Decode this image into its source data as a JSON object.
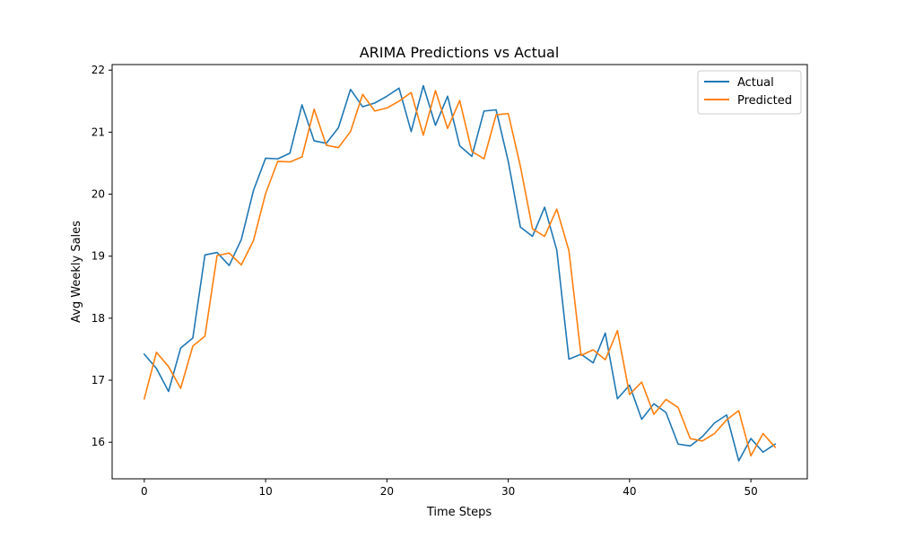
{
  "chart_data": {
    "type": "line",
    "title": "ARIMA Predictions vs Actual",
    "xlabel": "Time Steps",
    "ylabel": "Avg Weekly Sales",
    "xlim": [
      -2.65,
      54.65
    ],
    "ylim": [
      15.41,
      22.09
    ],
    "xticks": [
      0,
      10,
      20,
      30,
      40,
      50
    ],
    "yticks": [
      16,
      17,
      18,
      19,
      20,
      21,
      22
    ],
    "grid": false,
    "legend_position": "top-right",
    "x": [
      0,
      1,
      2,
      3,
      4,
      5,
      6,
      7,
      8,
      9,
      10,
      11,
      12,
      13,
      14,
      15,
      16,
      17,
      18,
      19,
      20,
      21,
      22,
      23,
      24,
      25,
      26,
      27,
      28,
      29,
      30,
      31,
      32,
      33,
      34,
      35,
      36,
      37,
      38,
      39,
      40,
      41,
      42,
      43,
      44,
      45,
      46,
      47,
      48,
      49,
      50,
      51,
      52
    ],
    "series": [
      {
        "name": "Actual",
        "color": "#1f77b4",
        "values": [
          17.42,
          17.19,
          16.82,
          17.52,
          17.68,
          19.02,
          19.06,
          18.85,
          19.27,
          20.06,
          20.58,
          20.57,
          20.66,
          21.44,
          20.86,
          20.82,
          21.07,
          21.69,
          21.41,
          21.47,
          21.58,
          21.71,
          21.01,
          21.75,
          21.11,
          21.58,
          20.78,
          20.61,
          21.34,
          21.36,
          20.53,
          19.47,
          19.32,
          19.79,
          19.1,
          17.34,
          17.42,
          17.28,
          17.76,
          16.7,
          16.92,
          16.37,
          16.62,
          16.48,
          15.97,
          15.94,
          16.09,
          16.31,
          16.44,
          15.7,
          16.06,
          15.84,
          15.97
        ]
      },
      {
        "name": "Predicted",
        "color": "#ff7f0e",
        "values": [
          16.7,
          17.45,
          17.22,
          16.87,
          17.55,
          17.71,
          19.01,
          19.05,
          18.86,
          19.25,
          20.01,
          20.53,
          20.52,
          20.6,
          21.37,
          20.79,
          20.75,
          21.01,
          21.61,
          21.34,
          21.39,
          21.5,
          21.64,
          20.95,
          21.67,
          21.06,
          21.51,
          20.69,
          20.57,
          21.28,
          21.3,
          20.45,
          19.44,
          19.32,
          19.76,
          19.09,
          17.4,
          17.49,
          17.33,
          17.8,
          16.77,
          16.97,
          16.45,
          16.69,
          16.56,
          16.06,
          16.02,
          16.14,
          16.36,
          16.51,
          15.78,
          16.14,
          15.92
        ]
      }
    ]
  }
}
